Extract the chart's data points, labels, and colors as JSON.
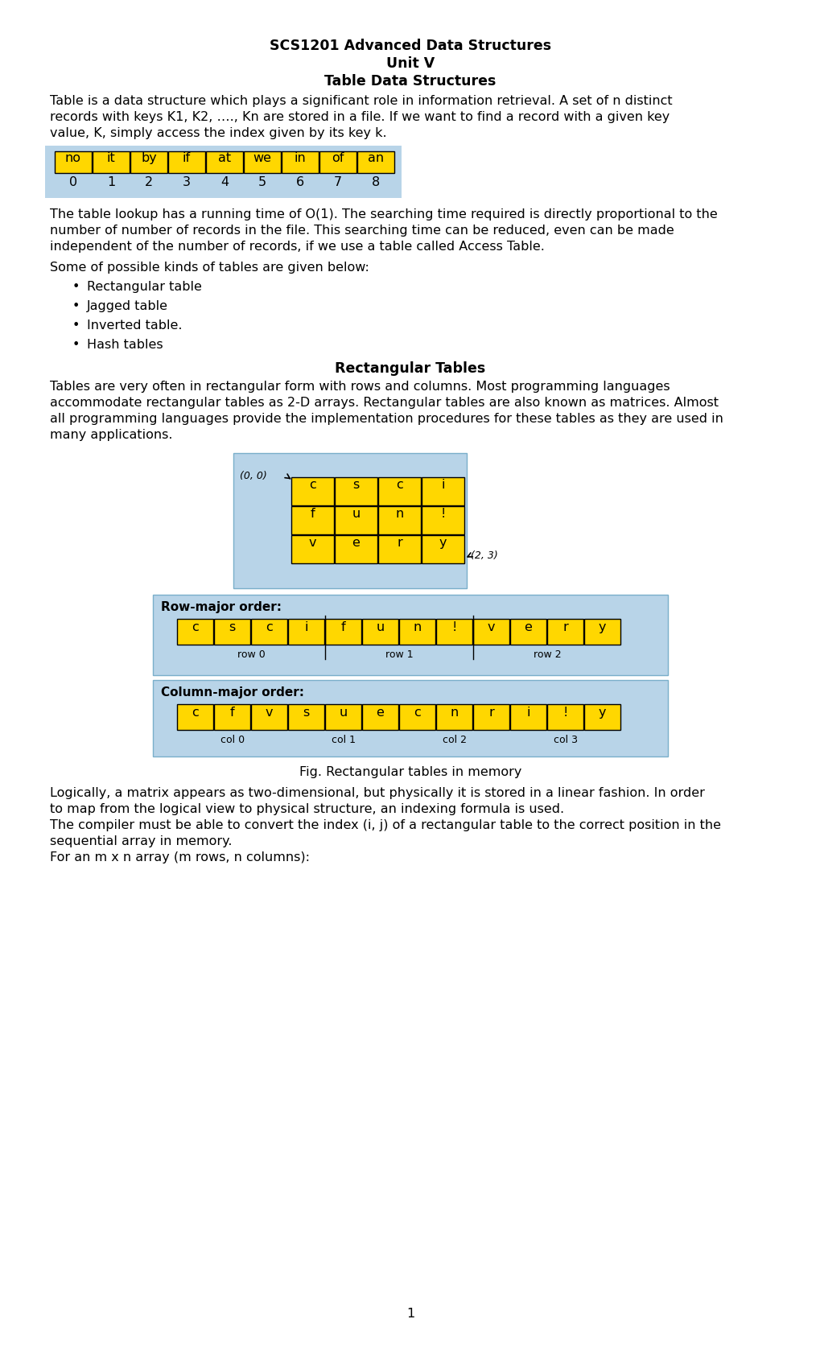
{
  "title1": "SCS1201 Advanced Data Structures",
  "title2": "Unit V",
  "title3": "Table Data Structures",
  "para1a": "Table is a data structure which plays a significant role in information retrieval. A set of n distinct",
  "para1b": "records with keys K1, K2, …., Kn are stored in a file. If we want to find a record with a given key",
  "para1c": "value, K, simply access the index given by its key k.",
  "table_words": [
    "no",
    "it",
    "by",
    "if",
    "at",
    "we",
    "in",
    "of",
    "an"
  ],
  "table_indices": [
    "0",
    "1",
    "2",
    "3",
    "4",
    "5",
    "6",
    "7",
    "8"
  ],
  "para2a": "The table lookup has a running time of O(1). The searching time required is directly proportional to the",
  "para2b": "number of number of records in the file. This searching time can be reduced, even can be made",
  "para2c": "independent of the number of records, if we use a table called Access Table.",
  "para3": "Some of possible kinds of tables are given below:",
  "bullets": [
    "Rectangular table",
    "Jagged table",
    "Inverted table.",
    "Hash tables"
  ],
  "rect_heading": "Rectangular Tables",
  "rect_para1": "Tables are very often in rectangular form with rows and columns. Most programming languages",
  "rect_para2": "accommodate rectangular tables as 2-D arrays. Rectangular tables are also known as matrices. Almost",
  "rect_para3": "all programming languages provide the implementation procedures for these tables as they are used in",
  "rect_para4": "many applications.",
  "matrix_data": [
    [
      "c",
      "s",
      "c",
      "i"
    ],
    [
      "f",
      "u",
      "n",
      "!"
    ],
    [
      "v",
      "e",
      "r",
      "y"
    ]
  ],
  "row_major_data": [
    "c",
    "s",
    "c",
    "i",
    "f",
    "u",
    "n",
    "!",
    "v",
    "e",
    "r",
    "y"
  ],
  "col_major_data": [
    "c",
    "f",
    "v",
    "s",
    "u",
    "e",
    "c",
    "n",
    "r",
    "i",
    "!",
    "y"
  ],
  "fig_caption": "Fig. Rectangular tables in memory",
  "para4a": "Logically, a matrix appears as two-dimensional, but physically it is stored in a linear fashion. In order",
  "para4b": "to map from the logical view to physical structure, an indexing formula is used.",
  "para5a": "The compiler must be able to convert the index (i, j) of a rectangular table to the correct position in the",
  "para5b": "sequential array in memory.",
  "para6": "For an m x n array (m rows, n columns):",
  "page_num": "1",
  "yellow": "#FFD700",
  "light_blue": "#B8D4E8",
  "bg_color": "#FFFFFF",
  "text_color": "#000000"
}
